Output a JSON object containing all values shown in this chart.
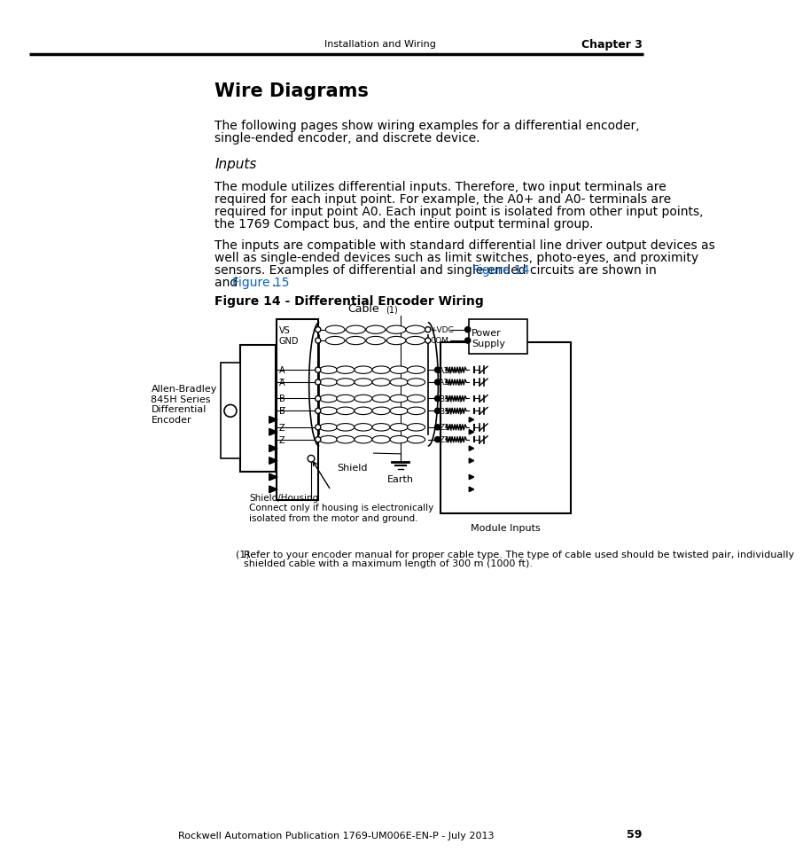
{
  "page_header_left": "Installation and Wiring",
  "page_header_right": "Chapter 3",
  "page_number": "59",
  "footer_text": "Rockwell Automation Publication 1769-UM006E-EN-P - July 2013",
  "section_title": "Wire Diagrams",
  "para1_line1": "The following pages show wiring examples for a differential encoder,",
  "para1_line2": "single-ended encoder, and discrete device.",
  "subsection_title": "Inputs",
  "para2_line1": "The module utilizes differential inputs. Therefore, two input terminals are",
  "para2_line2": "required for each input point. For example, the A0+ and A0- terminals are",
  "para2_line3": "required for input point A0. Each input point is isolated from other input points,",
  "para2_line4": "the 1769 Compact bus, and the entire output terminal group.",
  "para3_line1": "The inputs are compatible with standard differential line driver output devices as",
  "para3_line2": "well as single-ended devices such as limit switches, photo-eyes, and proximity",
  "para3_line3_pre": "sensors. Examples of differential and single-ended circuits are shown in ",
  "para3_link1": "Figure 14",
  "para3_line4_pre": "and ",
  "para3_link2": "Figure 15",
  "para3_line4_post": ".",
  "figure_title": "Figure 14 - Differential Encoder Wiring",
  "cable_label": "Cable",
  "cable_superscript": "(1)",
  "vs_label": "VS",
  "gnd_label": "GND",
  "vdc_label": "+VDC",
  "com_label": "COM",
  "power_supply_label": "Power\nSupply",
  "sig_labels_left": [
    "A",
    "A̅",
    "B",
    "B̅",
    "Z",
    "Z̅"
  ],
  "sig_labels_right": [
    "A1(+)",
    "A1(−)",
    "B1(+)",
    "B1(−)",
    "Z1(+)",
    "Z1(−)"
  ],
  "encoder_label": "Allen-Bradley\n845H Series\nDifferential\nEncoder",
  "shield_label": "Shield",
  "shield_housing_label": "Shield/Housing\nConnect only if housing is electronically\nisolated from the motor and ground.",
  "earth_label": "Earth",
  "module_inputs_label": "Module Inputs",
  "footnote_num": "(1)",
  "footnote_text": "  Refer to your encoder manual for proper cable type. The type of cable used should be twisted pair, individually\n       shielded cable with a maximum length of 300 m (1000 ft).",
  "link_color": "#0563C1",
  "black": "#000000",
  "white": "#FFFFFF",
  "bg_color": "#FFFFFF"
}
